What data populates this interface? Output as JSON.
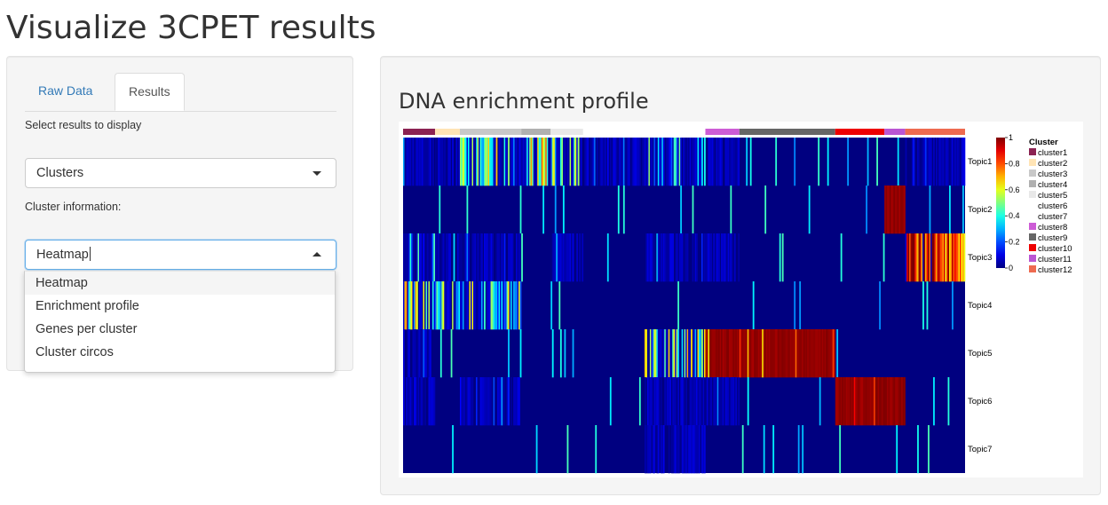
{
  "app": {
    "title": "Visualize 3CPET results"
  },
  "tabs": [
    {
      "label": "Raw Data",
      "active": false
    },
    {
      "label": "Results",
      "active": true
    }
  ],
  "results_select": {
    "label": "Select results to display",
    "value": "Clusters"
  },
  "cluster_select": {
    "label": "Cluster information:",
    "value": "Heatmap",
    "options": [
      "Heatmap",
      "Enrichment profile",
      "Genes per cluster",
      "Cluster circos"
    ],
    "highlighted": "Heatmap"
  },
  "main": {
    "panel_title": "DNA enrichment profile"
  },
  "chart_data": {
    "type": "heatmap",
    "title": "",
    "row_labels": [
      "Topic1",
      "Topic2",
      "Topic3",
      "Topic4",
      "Topic5",
      "Topic6",
      "Topic7"
    ],
    "color_scale": {
      "min": 0,
      "max": 1,
      "ticks": [
        "0",
        "0.2",
        "0.4",
        "0.6",
        "0.8",
        "1"
      ],
      "colormap": "jet"
    },
    "legend_title": "Cluster",
    "clusters": [
      {
        "name": "cluster1",
        "color": "#8B2252"
      },
      {
        "name": "cluster2",
        "color": "#FFE4B5"
      },
      {
        "name": "cluster3",
        "color": "#C8C8C8"
      },
      {
        "name": "cluster4",
        "color": "#B0B0B0"
      },
      {
        "name": "cluster5",
        "color": "#E8E8E8"
      },
      {
        "name": "cluster6",
        "color": "#FFFFFF"
      },
      {
        "name": "cluster7",
        "color": "#FFFFFF"
      },
      {
        "name": "cluster8",
        "color": "#CD5CD6"
      },
      {
        "name": "cluster9",
        "color": "#666666"
      },
      {
        "name": "cluster10",
        "color": "#EE0000"
      },
      {
        "name": "cluster11",
        "color": "#BA55D3"
      },
      {
        "name": "cluster12",
        "color": "#EE6A50"
      }
    ],
    "cluster_column_fractions": [
      0.063,
      0.049,
      0.121,
      0.058,
      0.064,
      0.121,
      0.12,
      0.067,
      0.189,
      0.097,
      0.041,
      0.118
    ],
    "mean_values": [
      [
        0.08,
        0.15,
        0.5,
        0.55,
        0.4,
        0.08,
        0.3,
        0.05,
        0.02,
        0.02,
        0.02,
        0.08
      ],
      [
        0.02,
        0.02,
        0.02,
        0.02,
        0.02,
        0.02,
        0.02,
        0.02,
        0.02,
        0.02,
        0.95,
        0.02
      ],
      [
        0.25,
        0.12,
        0.08,
        0.03,
        0.12,
        0.02,
        0.12,
        0.05,
        0.02,
        0.02,
        0.02,
        0.85
      ],
      [
        0.5,
        0.45,
        0.4,
        0.02,
        0.02,
        0.02,
        0.02,
        0.02,
        0.02,
        0.02,
        0.02,
        0.02
      ],
      [
        0.08,
        0.03,
        0.03,
        0.03,
        0.03,
        0.03,
        0.5,
        0.97,
        0.97,
        0.02,
        0.02,
        0.02
      ],
      [
        0.1,
        0.03,
        0.12,
        0.03,
        0.03,
        0.03,
        0.1,
        0.05,
        0.03,
        0.95,
        0.95,
        0.02
      ],
      [
        0.02,
        0.02,
        0.02,
        0.02,
        0.02,
        0.02,
        0.08,
        0.02,
        0.02,
        0.02,
        0.02,
        0.02
      ]
    ]
  }
}
